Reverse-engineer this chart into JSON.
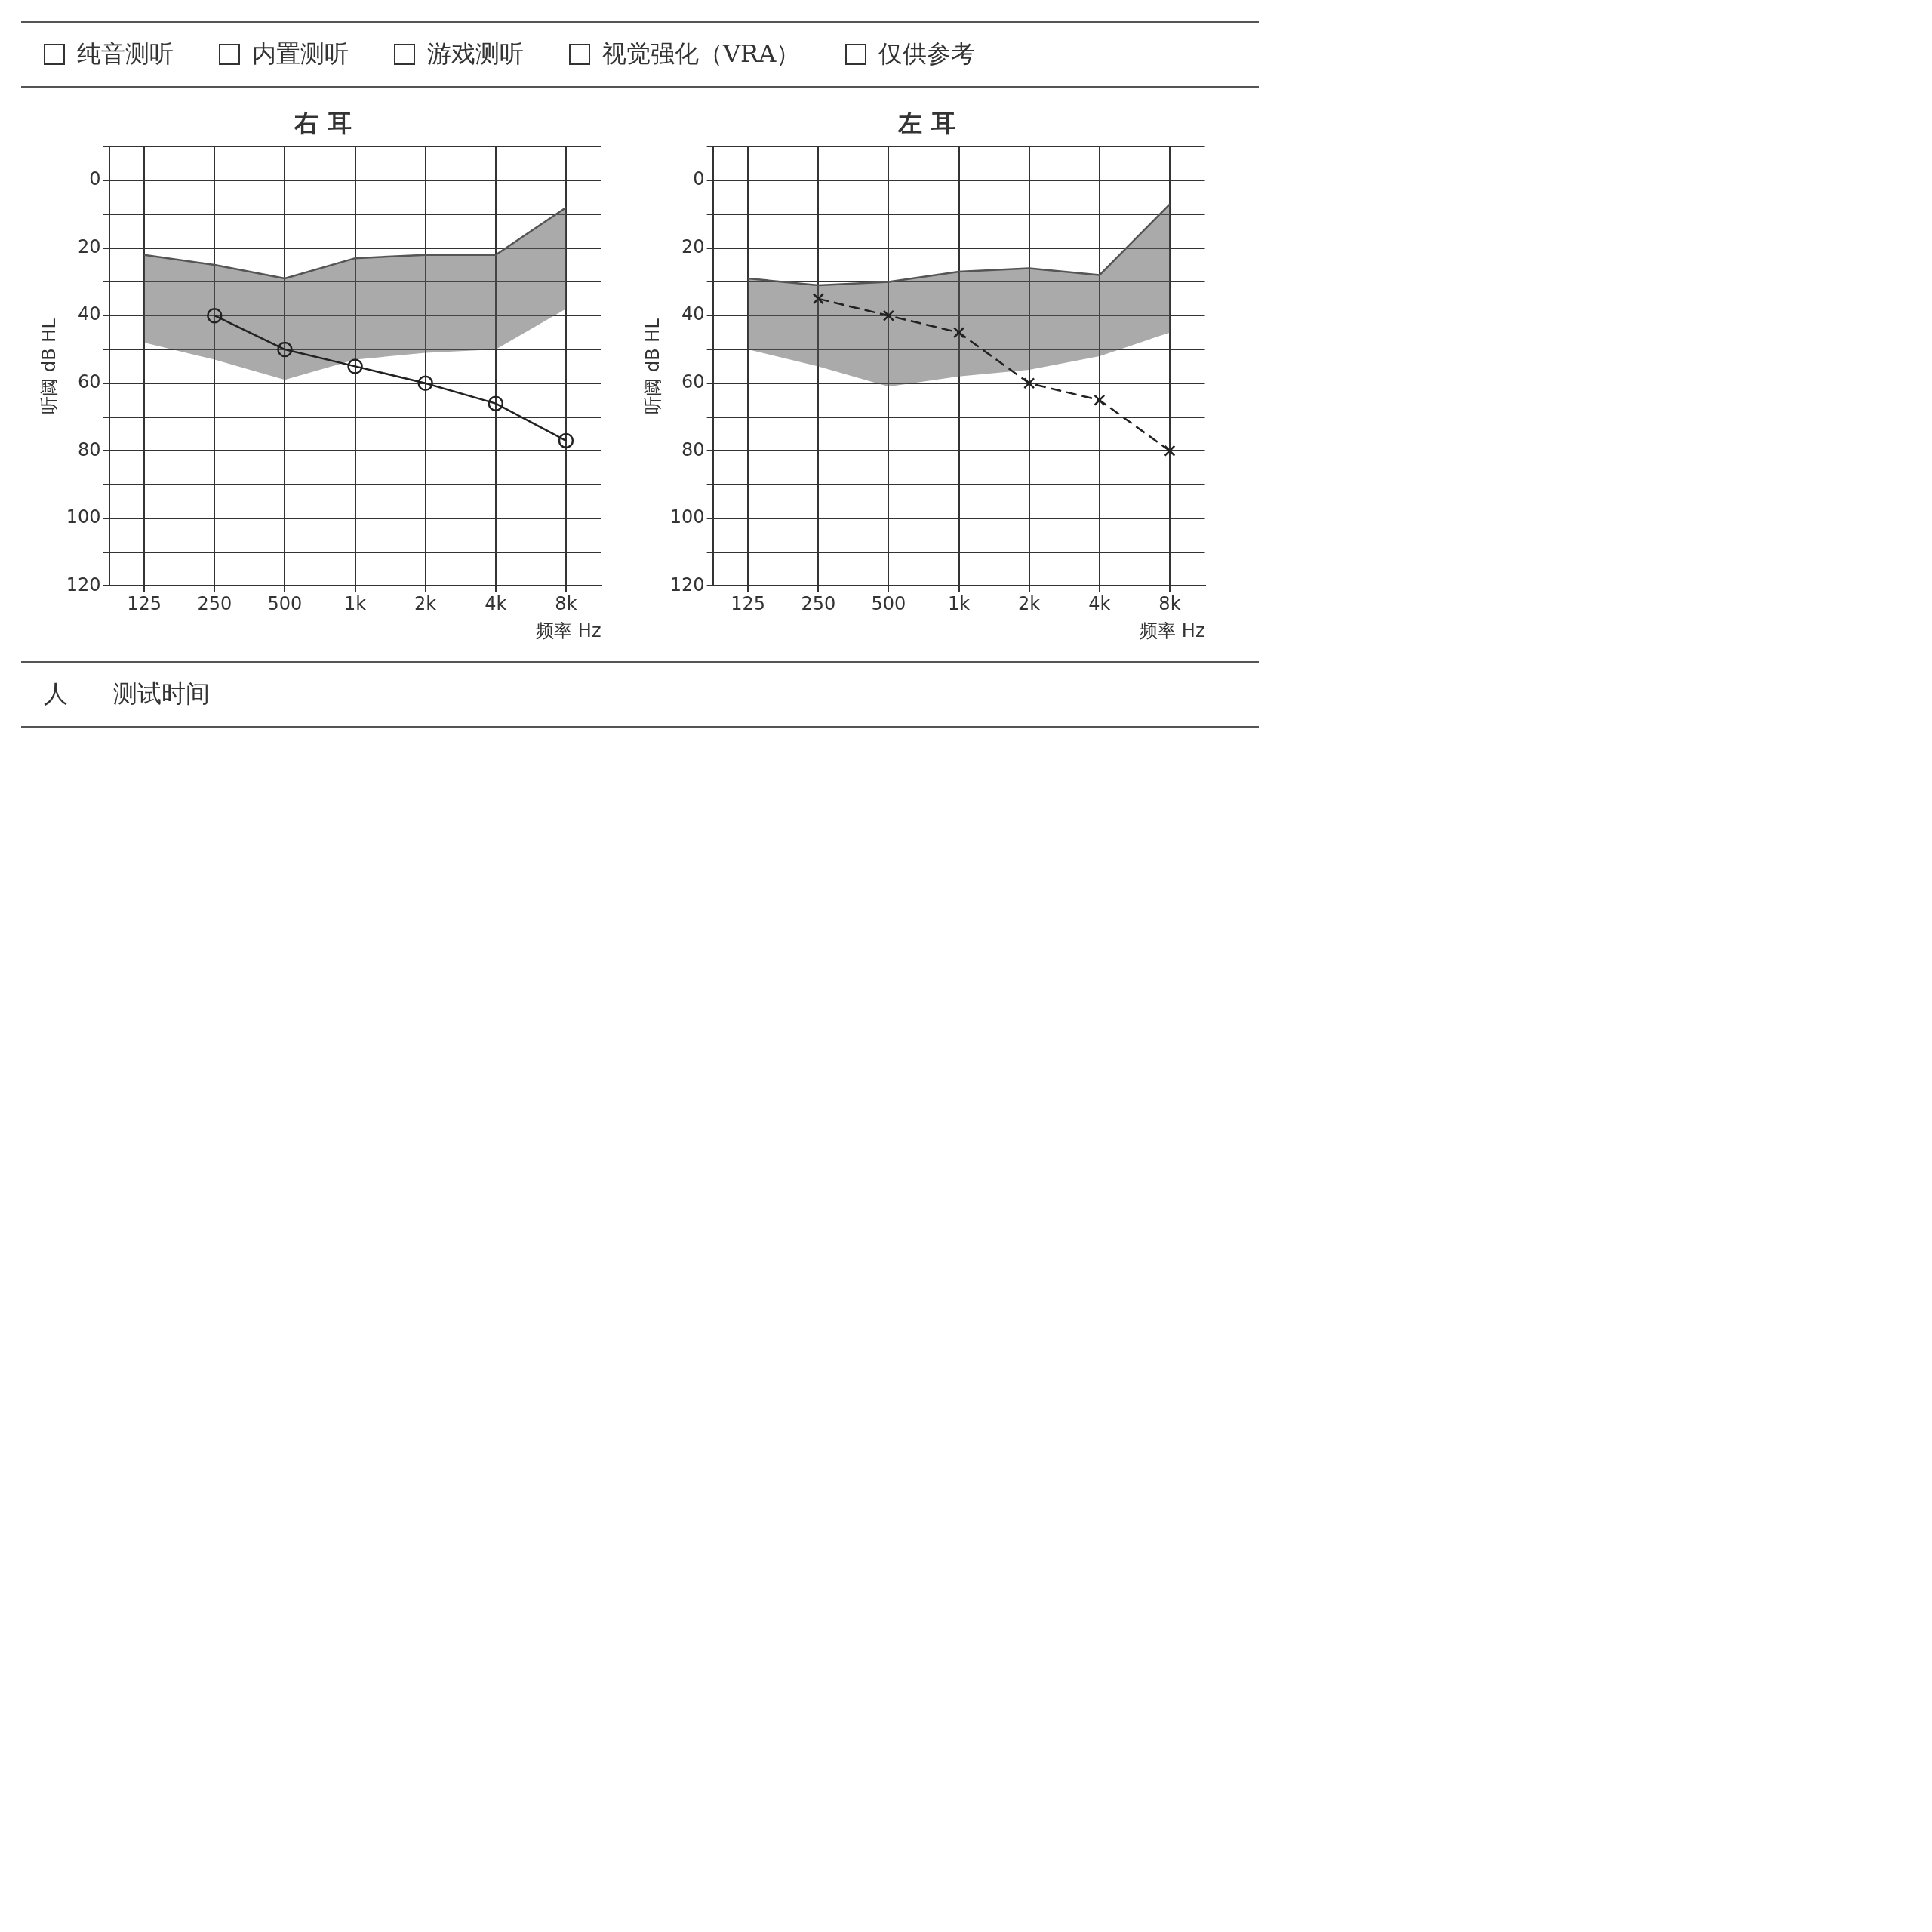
{
  "chart_data": [
    {
      "type": "other",
      "annotations": [
        "纯音测听",
        "内置测听",
        "游戏测听",
        "视觉强化（VRA）",
        "仅供参考"
      ]
    },
    {
      "type": "line",
      "title": "右 耳",
      "xlabel": "频率 Hz",
      "ylabel": "听阈 dB HL",
      "categories": [
        "125",
        "250",
        "500",
        "1k",
        "2k",
        "4k",
        "8k"
      ],
      "ylim": [
        120,
        -10
      ],
      "yticks": [
        {
          "value": -10,
          "label": null
        },
        0,
        {
          "value": 10,
          "label": null
        },
        20,
        {
          "value": 30,
          "label": null
        },
        40,
        {
          "value": 50,
          "label": null
        },
        60,
        {
          "value": 70,
          "label": null
        },
        80,
        {
          "value": 90,
          "label": null
        },
        100,
        {
          "value": 110,
          "label": null
        },
        120
      ],
      "grid": true,
      "legend": false,
      "series": [
        {
          "color": "#555555",
          "values": [
            22,
            25,
            29,
            23,
            22,
            22,
            8
          ],
          "lower": [
            48,
            53,
            59,
            53,
            51,
            50,
            38
          ],
          "upper": [
            22,
            25,
            29,
            23,
            22,
            22,
            8
          ],
          "marker": "none",
          "line_style": "solid"
        },
        {
          "color": "#222222",
          "values": [
            null,
            40,
            50,
            55,
            60,
            66,
            77
          ],
          "marker": "circle",
          "line_style": "solid"
        }
      ]
    },
    {
      "type": "line",
      "title": "左 耳",
      "xlabel": "频率 Hz",
      "ylabel": "听阈 dB HL",
      "categories": [
        "125",
        "250",
        "500",
        "1k",
        "2k",
        "4k",
        "8k"
      ],
      "ylim": [
        120,
        -10
      ],
      "yticks": [
        {
          "value": -10,
          "label": null
        },
        0,
        {
          "value": 10,
          "label": null
        },
        20,
        {
          "value": 30,
          "label": null
        },
        40,
        {
          "value": 50,
          "label": null
        },
        60,
        {
          "value": 70,
          "label": null
        },
        80,
        {
          "value": 90,
          "label": null
        },
        100,
        {
          "value": 110,
          "label": null
        },
        120
      ],
      "grid": true,
      "legend": false,
      "series": [
        {
          "color": "#555555",
          "values": [
            29,
            31,
            30,
            27,
            26,
            28,
            7
          ],
          "lower": [
            50,
            55,
            61,
            58,
            56,
            52,
            45
          ],
          "upper": [
            29,
            31,
            30,
            27,
            26,
            28,
            7
          ],
          "marker": "none",
          "line_style": "solid"
        },
        {
          "color": "#222222",
          "values": [
            null,
            35,
            40,
            45,
            60,
            65,
            80
          ],
          "marker": "cross",
          "line_style": "dashed"
        }
      ]
    },
    {
      "type": "other",
      "annotations": [
        "人",
        "测试时间"
      ]
    }
  ]
}
